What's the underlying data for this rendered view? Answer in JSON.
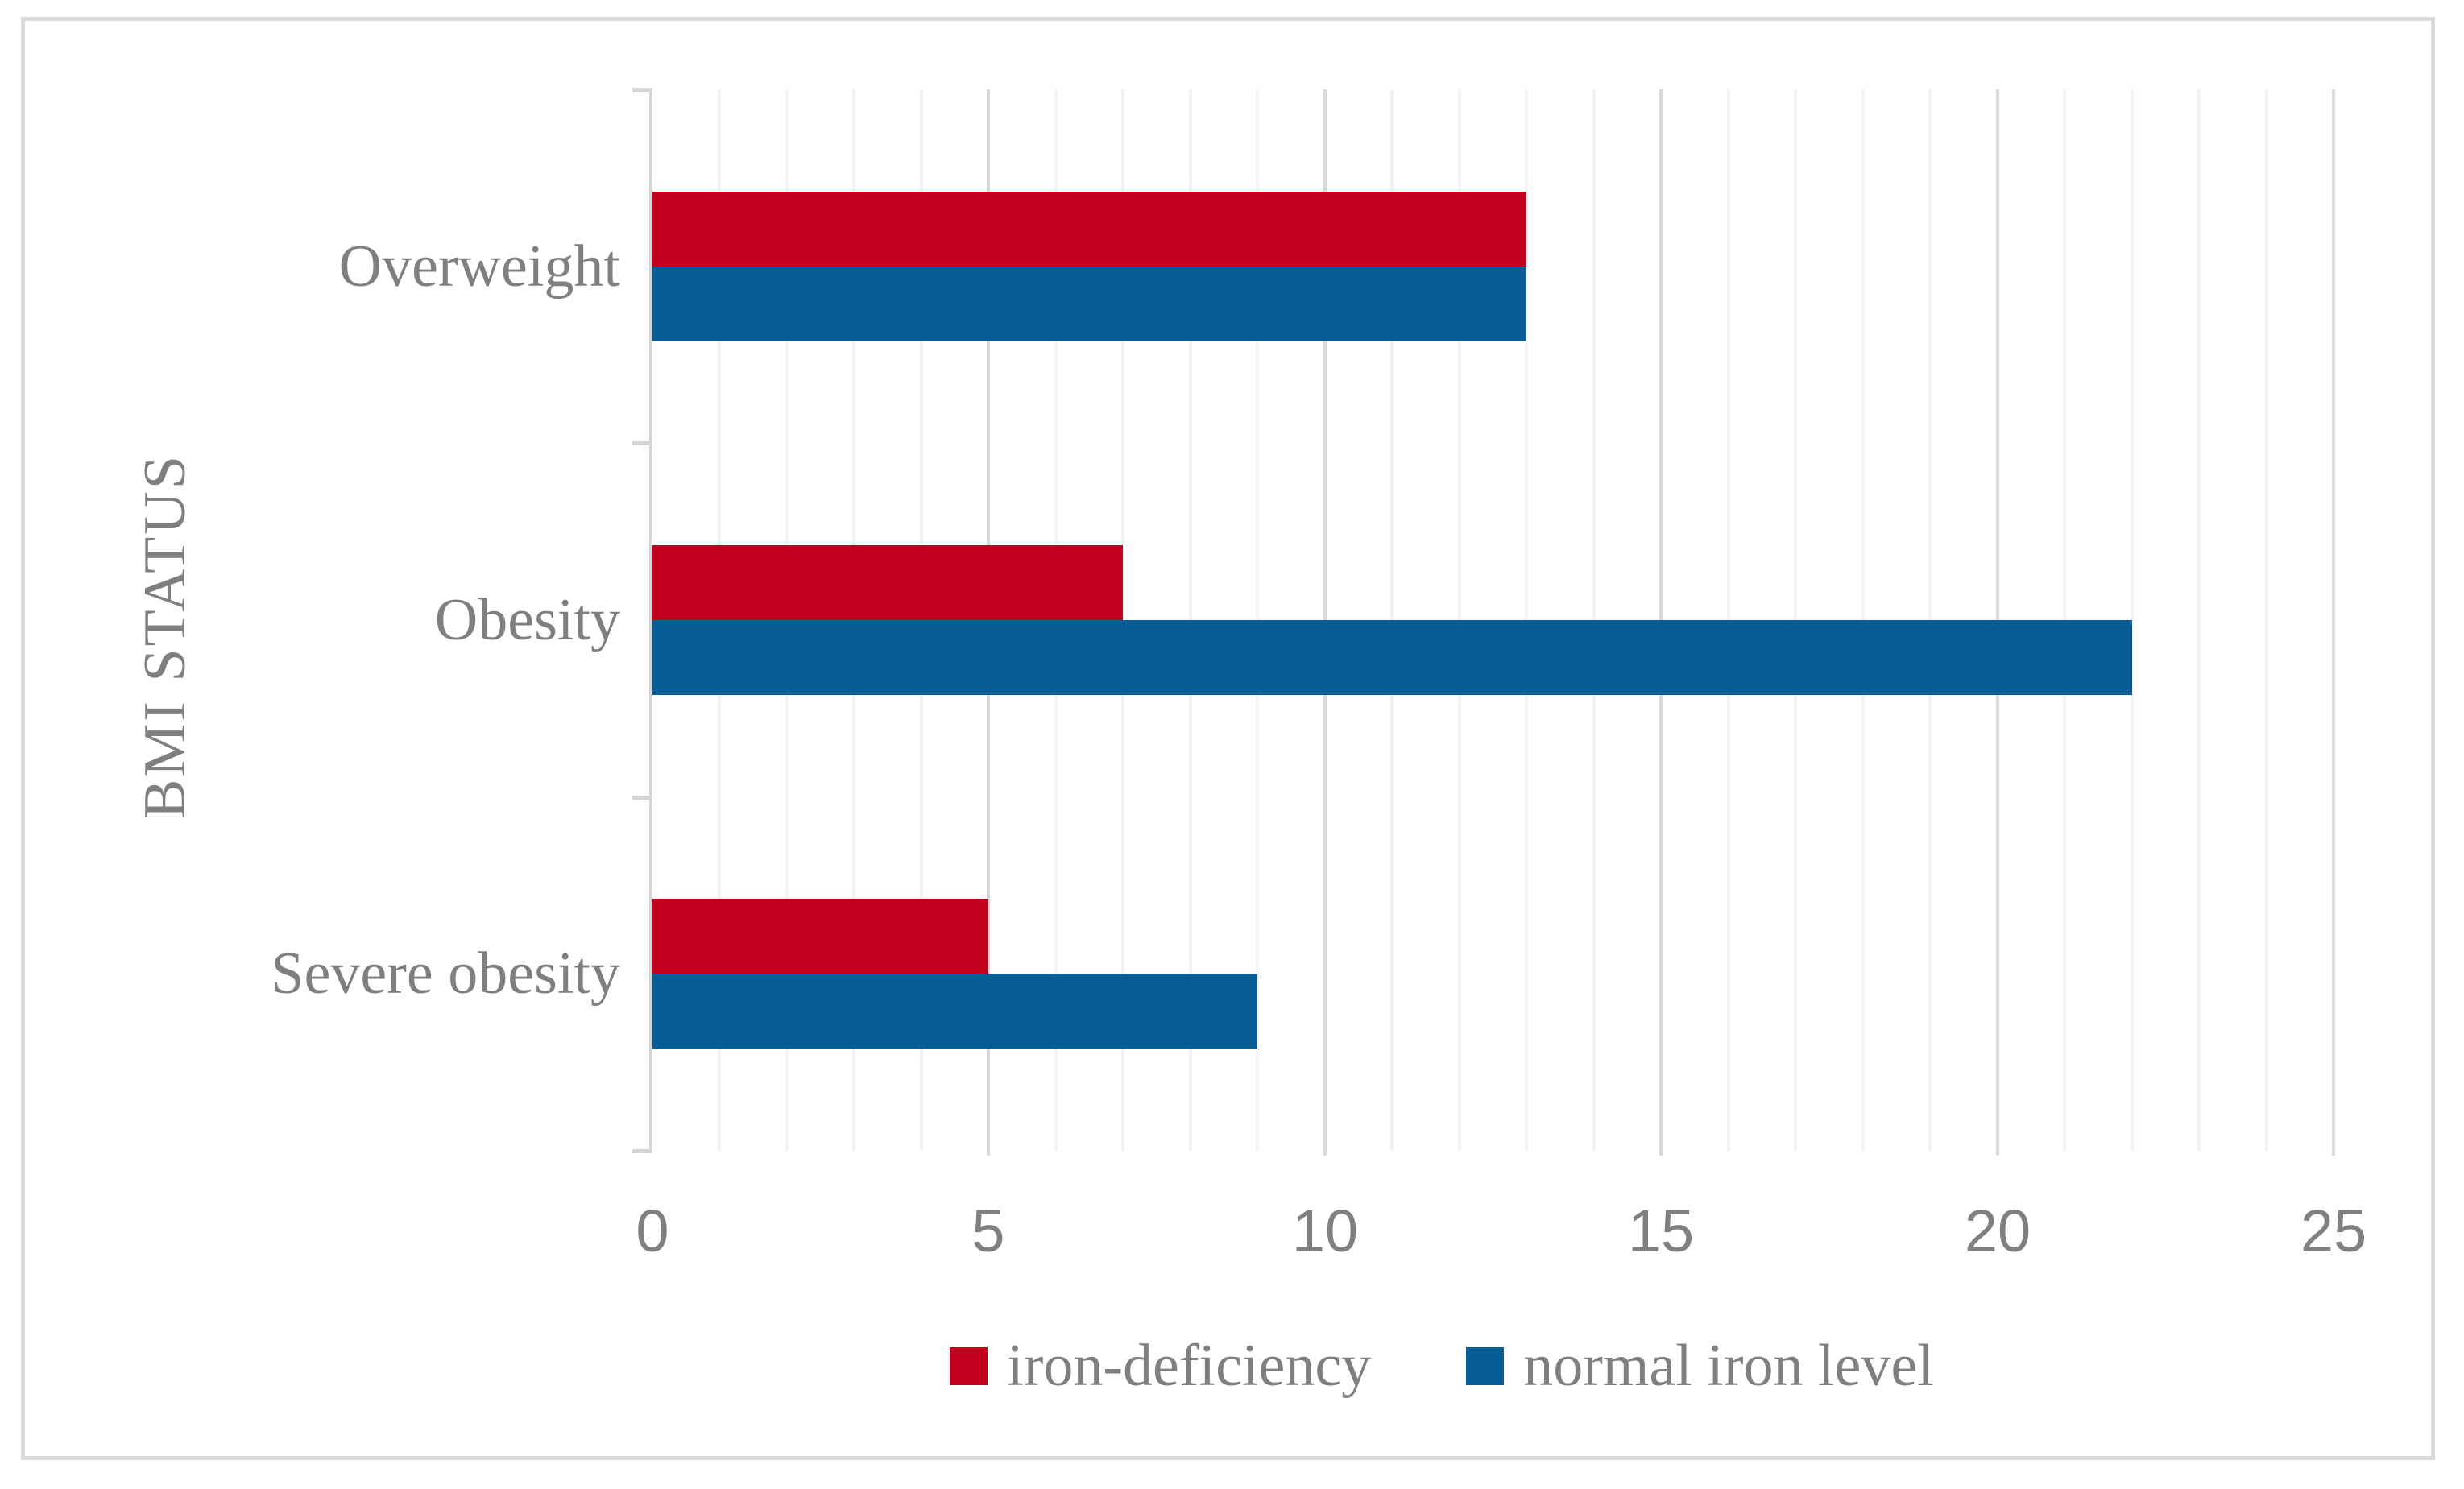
{
  "figure": {
    "background_color": "#ffffff",
    "border_color": "#dbdbdb"
  },
  "chart_data": {
    "type": "bar",
    "orientation": "horizontal",
    "title": "",
    "xlabel": "",
    "ylabel": "BMI STATUS",
    "categories": [
      "Overweight",
      "Obesity",
      "Severe obesity"
    ],
    "series": [
      {
        "name": "iron-deficiency",
        "color": "#c2001e",
        "values": [
          13,
          7,
          5
        ]
      },
      {
        "name": "normal iron level",
        "color": "#075d96",
        "values": [
          13,
          22,
          9
        ]
      }
    ],
    "xlim": [
      0,
      25
    ],
    "x_tick_interval_major": 5,
    "x_tick_interval_minor": 1,
    "x_tick_labels": [
      "0",
      "5",
      "10",
      "15",
      "20",
      "25"
    ],
    "x_tick_values": [
      0,
      5,
      10,
      15,
      20,
      25
    ],
    "grid": "vertical, minor every 1 unit, major every 5 units",
    "legend_position": "bottom-center",
    "colors": {
      "text": "#7f7f7f",
      "tick_text": "#808080",
      "gridline_minor": "#f2f2f2",
      "gridline_major": "#d9d9d9",
      "axis_line": "#d4d4d4"
    }
  }
}
